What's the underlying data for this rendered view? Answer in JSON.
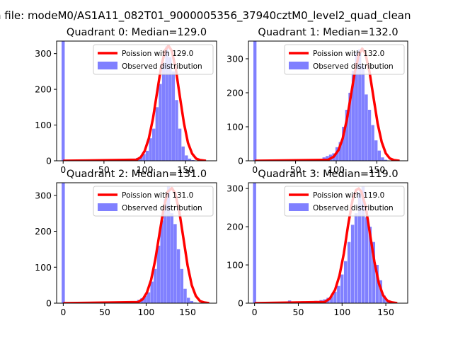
{
  "figure": {
    "suptitle": "n file: modeM0/AS1A11_082T01_9000005356_37940cztM0_level2_quad_clean"
  },
  "colors": {
    "fit": "#ff0000",
    "bars": "#8080ff",
    "axis": "#000000",
    "background": "#ffffff"
  },
  "chart_data": [
    {
      "type": "bar",
      "title": "Quadrant 0: Median=129.0",
      "median": 129.0,
      "xlim": [
        -8,
        188
      ],
      "ylim": [
        0,
        335
      ],
      "xticks": [
        0,
        50,
        100,
        150
      ],
      "yticks": [
        0,
        100,
        200,
        300
      ],
      "bin_width": 3.8,
      "legend_position": "upper-right",
      "legend": [
        "Poission with 129.0",
        "Observed distribution"
      ],
      "hist": {
        "name": "Observed distribution",
        "x": [
          0,
          87,
          91,
          95,
          99,
          103,
          107,
          111,
          115,
          119,
          123,
          127,
          131,
          135,
          139,
          143,
          147,
          151,
          155,
          159
        ],
        "values": [
          335,
          6,
          8,
          11,
          19,
          28,
          63,
          90,
          150,
          215,
          275,
          320,
          290,
          250,
          170,
          90,
          40,
          15,
          6,
          2
        ]
      },
      "fit": {
        "name": "Poission with 129.0",
        "x": [
          0,
          90,
          95,
          100,
          105,
          110,
          115,
          120,
          125,
          129,
          133,
          138,
          143,
          148,
          153,
          158,
          163,
          168,
          175
        ],
        "y": [
          0,
          3,
          10,
          28,
          63,
          118,
          190,
          262,
          310,
          322,
          308,
          258,
          180,
          105,
          50,
          20,
          6,
          2,
          0
        ]
      }
    },
    {
      "type": "bar",
      "title": "Quadrant 1: Median=132.0",
      "median": 132.0,
      "xlim": [
        -8,
        188
      ],
      "ylim": [
        0,
        352
      ],
      "xticks": [
        0,
        50,
        100,
        150
      ],
      "yticks": [
        0,
        100,
        200,
        300
      ],
      "bin_width": 3.8,
      "legend_position": "upper-right",
      "legend": [
        "Poission with 132.0",
        "Observed distribution"
      ],
      "hist": {
        "name": "Observed distribution",
        "x": [
          0,
          75,
          85,
          89,
          93,
          97,
          101,
          105,
          109,
          113,
          117,
          121,
          125,
          129,
          133,
          137,
          141,
          145,
          149,
          153,
          157,
          161
        ],
        "values": [
          352,
          4,
          10,
          14,
          18,
          22,
          40,
          55,
          100,
          150,
          200,
          265,
          318,
          328,
          280,
          195,
          150,
          105,
          60,
          30,
          10,
          3
        ]
      },
      "fit": {
        "name": "Poission with 132.0",
        "x": [
          0,
          90,
          97,
          103,
          108,
          113,
          118,
          123,
          128,
          132,
          136,
          141,
          146,
          151,
          156,
          161,
          166,
          171,
          178
        ],
        "y": [
          0,
          3,
          12,
          32,
          66,
          120,
          190,
          262,
          313,
          330,
          315,
          262,
          185,
          110,
          55,
          22,
          7,
          2,
          0
        ]
      }
    },
    {
      "type": "bar",
      "title": "Quadrant 2: Median=131.0",
      "median": 131.0,
      "xlim": [
        -8,
        185
      ],
      "ylim": [
        0,
        335
      ],
      "xticks": [
        0,
        50,
        100,
        150
      ],
      "yticks": [
        0,
        100,
        200,
        300
      ],
      "bin_width": 3.8,
      "legend_position": "upper-right",
      "legend": [
        "Poission with 131.0",
        "Observed distribution"
      ],
      "hist": {
        "name": "Observed distribution",
        "x": [
          0,
          87,
          91,
          95,
          99,
          103,
          107,
          111,
          115,
          119,
          123,
          127,
          131,
          135,
          139,
          143,
          147,
          151,
          155,
          159
        ],
        "values": [
          335,
          6,
          9,
          14,
          20,
          30,
          60,
          95,
          160,
          230,
          290,
          325,
          250,
          220,
          150,
          95,
          40,
          15,
          6,
          2
        ]
      },
      "fit": {
        "name": "Poission with 131.0",
        "x": [
          0,
          90,
          96,
          101,
          106,
          111,
          116,
          121,
          126,
          131,
          135,
          140,
          145,
          150,
          155,
          160,
          165,
          170,
          176
        ],
        "y": [
          0,
          3,
          11,
          30,
          65,
          120,
          192,
          262,
          310,
          320,
          306,
          255,
          180,
          105,
          50,
          20,
          6,
          2,
          0
        ]
      }
    },
    {
      "type": "bar",
      "title": "Quadrant 3: Median=119.0",
      "median": 119.0,
      "xlim": [
        -7,
        175
      ],
      "ylim": [
        0,
        315
      ],
      "xticks": [
        0,
        50,
        100,
        150
      ],
      "yticks": [
        0,
        100,
        200,
        300
      ],
      "bin_width": 3.6,
      "legend_position": "upper-right",
      "legend": [
        "Poission with 119.0",
        "Observed distribution"
      ],
      "hist": {
        "name": "Observed distribution",
        "x": [
          0,
          40,
          55,
          70,
          76,
          80,
          84,
          88,
          92,
          96,
          100,
          104,
          108,
          112,
          116,
          120,
          124,
          128,
          132,
          136,
          140,
          144,
          148,
          152
        ],
        "values": [
          315,
          7,
          5,
          6,
          8,
          10,
          14,
          18,
          30,
          45,
          75,
          110,
          160,
          205,
          235,
          290,
          305,
          225,
          200,
          160,
          100,
          60,
          20,
          5
        ]
      },
      "fit": {
        "name": "Poission with 119.0",
        "x": [
          0,
          80,
          86,
          92,
          97,
          102,
          107,
          112,
          116,
          119,
          122,
          127,
          132,
          137,
          142,
          147,
          152,
          157,
          163
        ],
        "y": [
          0,
          3,
          12,
          35,
          72,
          130,
          205,
          270,
          296,
          300,
          292,
          252,
          180,
          108,
          52,
          20,
          6,
          2,
          0
        ]
      }
    }
  ]
}
